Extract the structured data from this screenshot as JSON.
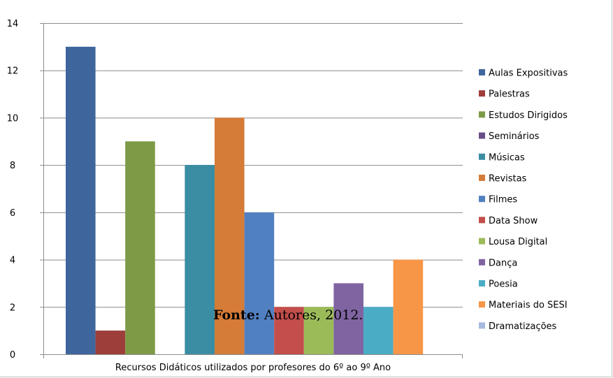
{
  "chart_data": {
    "type": "bar",
    "title": "",
    "xlabel": "Recursos Didáticos utilizados por profesores do 6º ao 9º Ano",
    "ylabel": "",
    "ylim": [
      0,
      14
    ],
    "yticks": [
      0,
      2,
      4,
      6,
      8,
      10,
      12,
      14
    ],
    "grid": true,
    "legend_position": "right",
    "series": [
      {
        "name": "Aulas Expositivas",
        "value": 13,
        "color": "#3f659d"
      },
      {
        "name": "Palestras",
        "value": 1,
        "color": "#9d3e3b"
      },
      {
        "name": "Estudos Dirigidos",
        "value": 9,
        "color": "#7e9a46"
      },
      {
        "name": "Seminários",
        "value": 0,
        "color": "#674e87"
      },
      {
        "name": "Músicas",
        "value": 8,
        "color": "#3a8da3"
      },
      {
        "name": "Revistas",
        "value": 10,
        "color": "#d47c38"
      },
      {
        "name": "Filmes",
        "value": 6,
        "color": "#5180c1"
      },
      {
        "name": "Data Show",
        "value": 2,
        "color": "#c34e4b"
      },
      {
        "name": "Lousa Digital",
        "value": 2,
        "color": "#9bbb59"
      },
      {
        "name": "Dança",
        "value": 3,
        "color": "#8064a2"
      },
      {
        "name": "Poesia",
        "value": 2,
        "color": "#4bacc6"
      },
      {
        "name": "Materiais do SESI",
        "value": 4,
        "color": "#f79646"
      },
      {
        "name": "Dramatizações",
        "value": 0,
        "color": "#a7b9de"
      }
    ]
  },
  "source_note": {
    "key": "Fonte:",
    "text": "Autores, 2012."
  }
}
